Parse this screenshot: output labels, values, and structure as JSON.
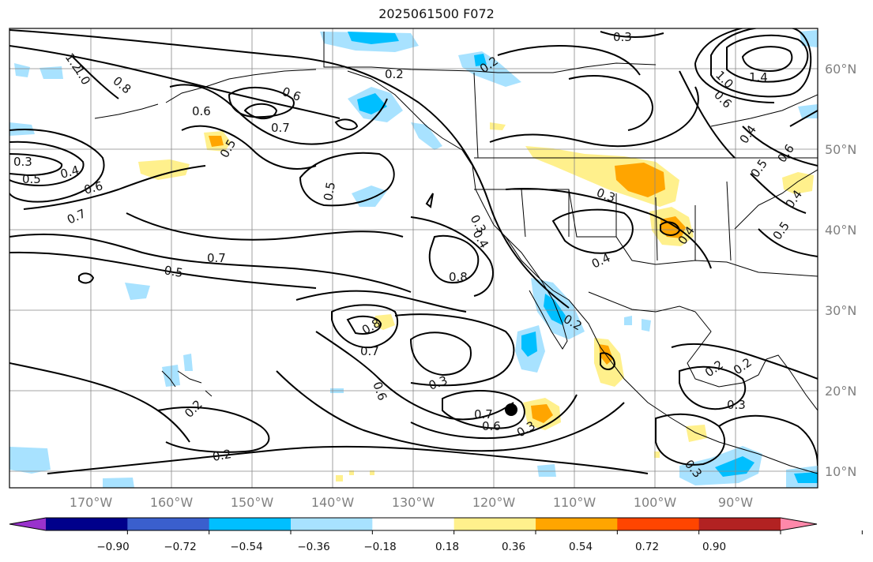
{
  "title": "2025061500 F072",
  "map": {
    "x_ticks": [
      "170°W",
      "160°W",
      "150°W",
      "140°W",
      "130°W",
      "120°W",
      "110°W",
      "100°W",
      "90°W"
    ],
    "y_ticks": [
      "60°N",
      "50°N",
      "40°N",
      "30°N",
      "20°N",
      "10°N"
    ],
    "contour_labels": [
      "0.3",
      "0.2",
      "1.0",
      "1.2",
      "0.8",
      "0.6",
      "0.6",
      "0.7",
      "0.5",
      "0.2",
      "0.3",
      "0.4",
      "0.5",
      "0.6",
      "0.7",
      "0.5",
      "0.5",
      "0.7",
      "0.8",
      "0.8",
      "0.7",
      "0.6",
      "0.3",
      "0.7",
      "0.6",
      "0.3",
      "0.2",
      "0.2",
      "0.3",
      "0.4",
      "0.3",
      "0.4",
      "0.4",
      "0.2",
      "0.2",
      "0.2",
      "0.3",
      "0.3",
      "0.4",
      "0.5",
      "0.6",
      "0.4",
      "0.5",
      "1.4",
      "0.6",
      "1.0"
    ]
  },
  "colorbar": {
    "tick_labels": [
      "−0.90",
      "−0.72",
      "−0.54",
      "−0.36",
      "−0.18",
      "0.18",
      "0.36",
      "0.54",
      "0.72",
      "0.90"
    ],
    "colors": [
      "#9932cc",
      "#00008b",
      "#3a5fcd",
      "#00bfff",
      "#a8e2ff",
      "#ffffff",
      "#fff08c",
      "#ffa500",
      "#ff4500",
      "#b22222",
      "#ff88aa"
    ]
  }
}
